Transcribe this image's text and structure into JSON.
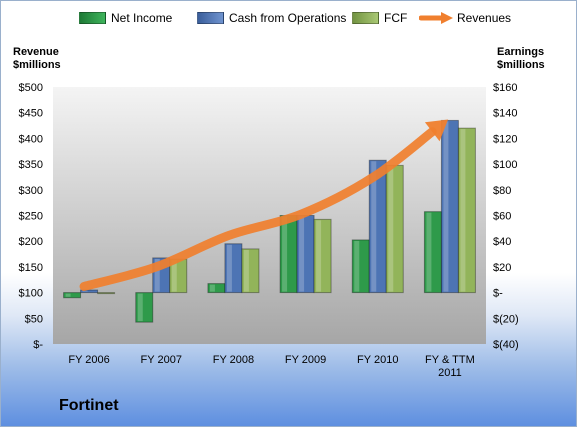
{
  "legend": {
    "net_income": "Net Income",
    "cash_from_operations": "Cash from Operations",
    "fcf": "FCF",
    "revenues": "Revenues"
  },
  "left_axis_title": [
    "Revenue",
    "$millions"
  ],
  "right_axis_title": [
    "Earnings",
    "$millions"
  ],
  "company": "Fortinet",
  "colors": {
    "net_income": "#2e9a4a",
    "cash_from_operations": "#4d74b4",
    "fcf": "#92b45a",
    "revenues": "#f07f2e",
    "plot_background_top": "#f4f4f4",
    "plot_background_bottom": "#a6a6a6"
  },
  "chart_data": {
    "type": "bar",
    "categories": [
      "FY 2006",
      "FY 2007",
      "FY 2008",
      "FY 2009",
      "FY 2010",
      "FY & TTM 2011"
    ],
    "series": [
      {
        "name": "Net Income",
        "axis": "right",
        "values": [
          -4,
          -23,
          7,
          60,
          41,
          63
        ]
      },
      {
        "name": "Cash from Operations",
        "axis": "right",
        "values": [
          2,
          27,
          38,
          60,
          103,
          134
        ]
      },
      {
        "name": "FCF",
        "axis": "right",
        "values": [
          0,
          26,
          34,
          57,
          99,
          128
        ]
      },
      {
        "name": "Revenues",
        "axis": "left",
        "type": "line",
        "values": [
          112,
          150,
          211,
          252,
          324,
          432
        ]
      }
    ],
    "y_left": {
      "title": "Revenue $millions",
      "ylim": [
        0,
        500
      ],
      "ticks": [
        "$-",
        "$50",
        "$100",
        "$150",
        "$200",
        "$250",
        "$300",
        "$350",
        "$400",
        "$450",
        "$500"
      ]
    },
    "y_right": {
      "title": "Earnings $millions",
      "ylim": [
        -40,
        160
      ],
      "ticks": [
        "$(40)",
        "$(20)",
        "$-",
        "$20",
        "$40",
        "$60",
        "$80",
        "$100",
        "$120",
        "$140",
        "$160"
      ]
    },
    "legend_position": "top",
    "grid": false
  }
}
